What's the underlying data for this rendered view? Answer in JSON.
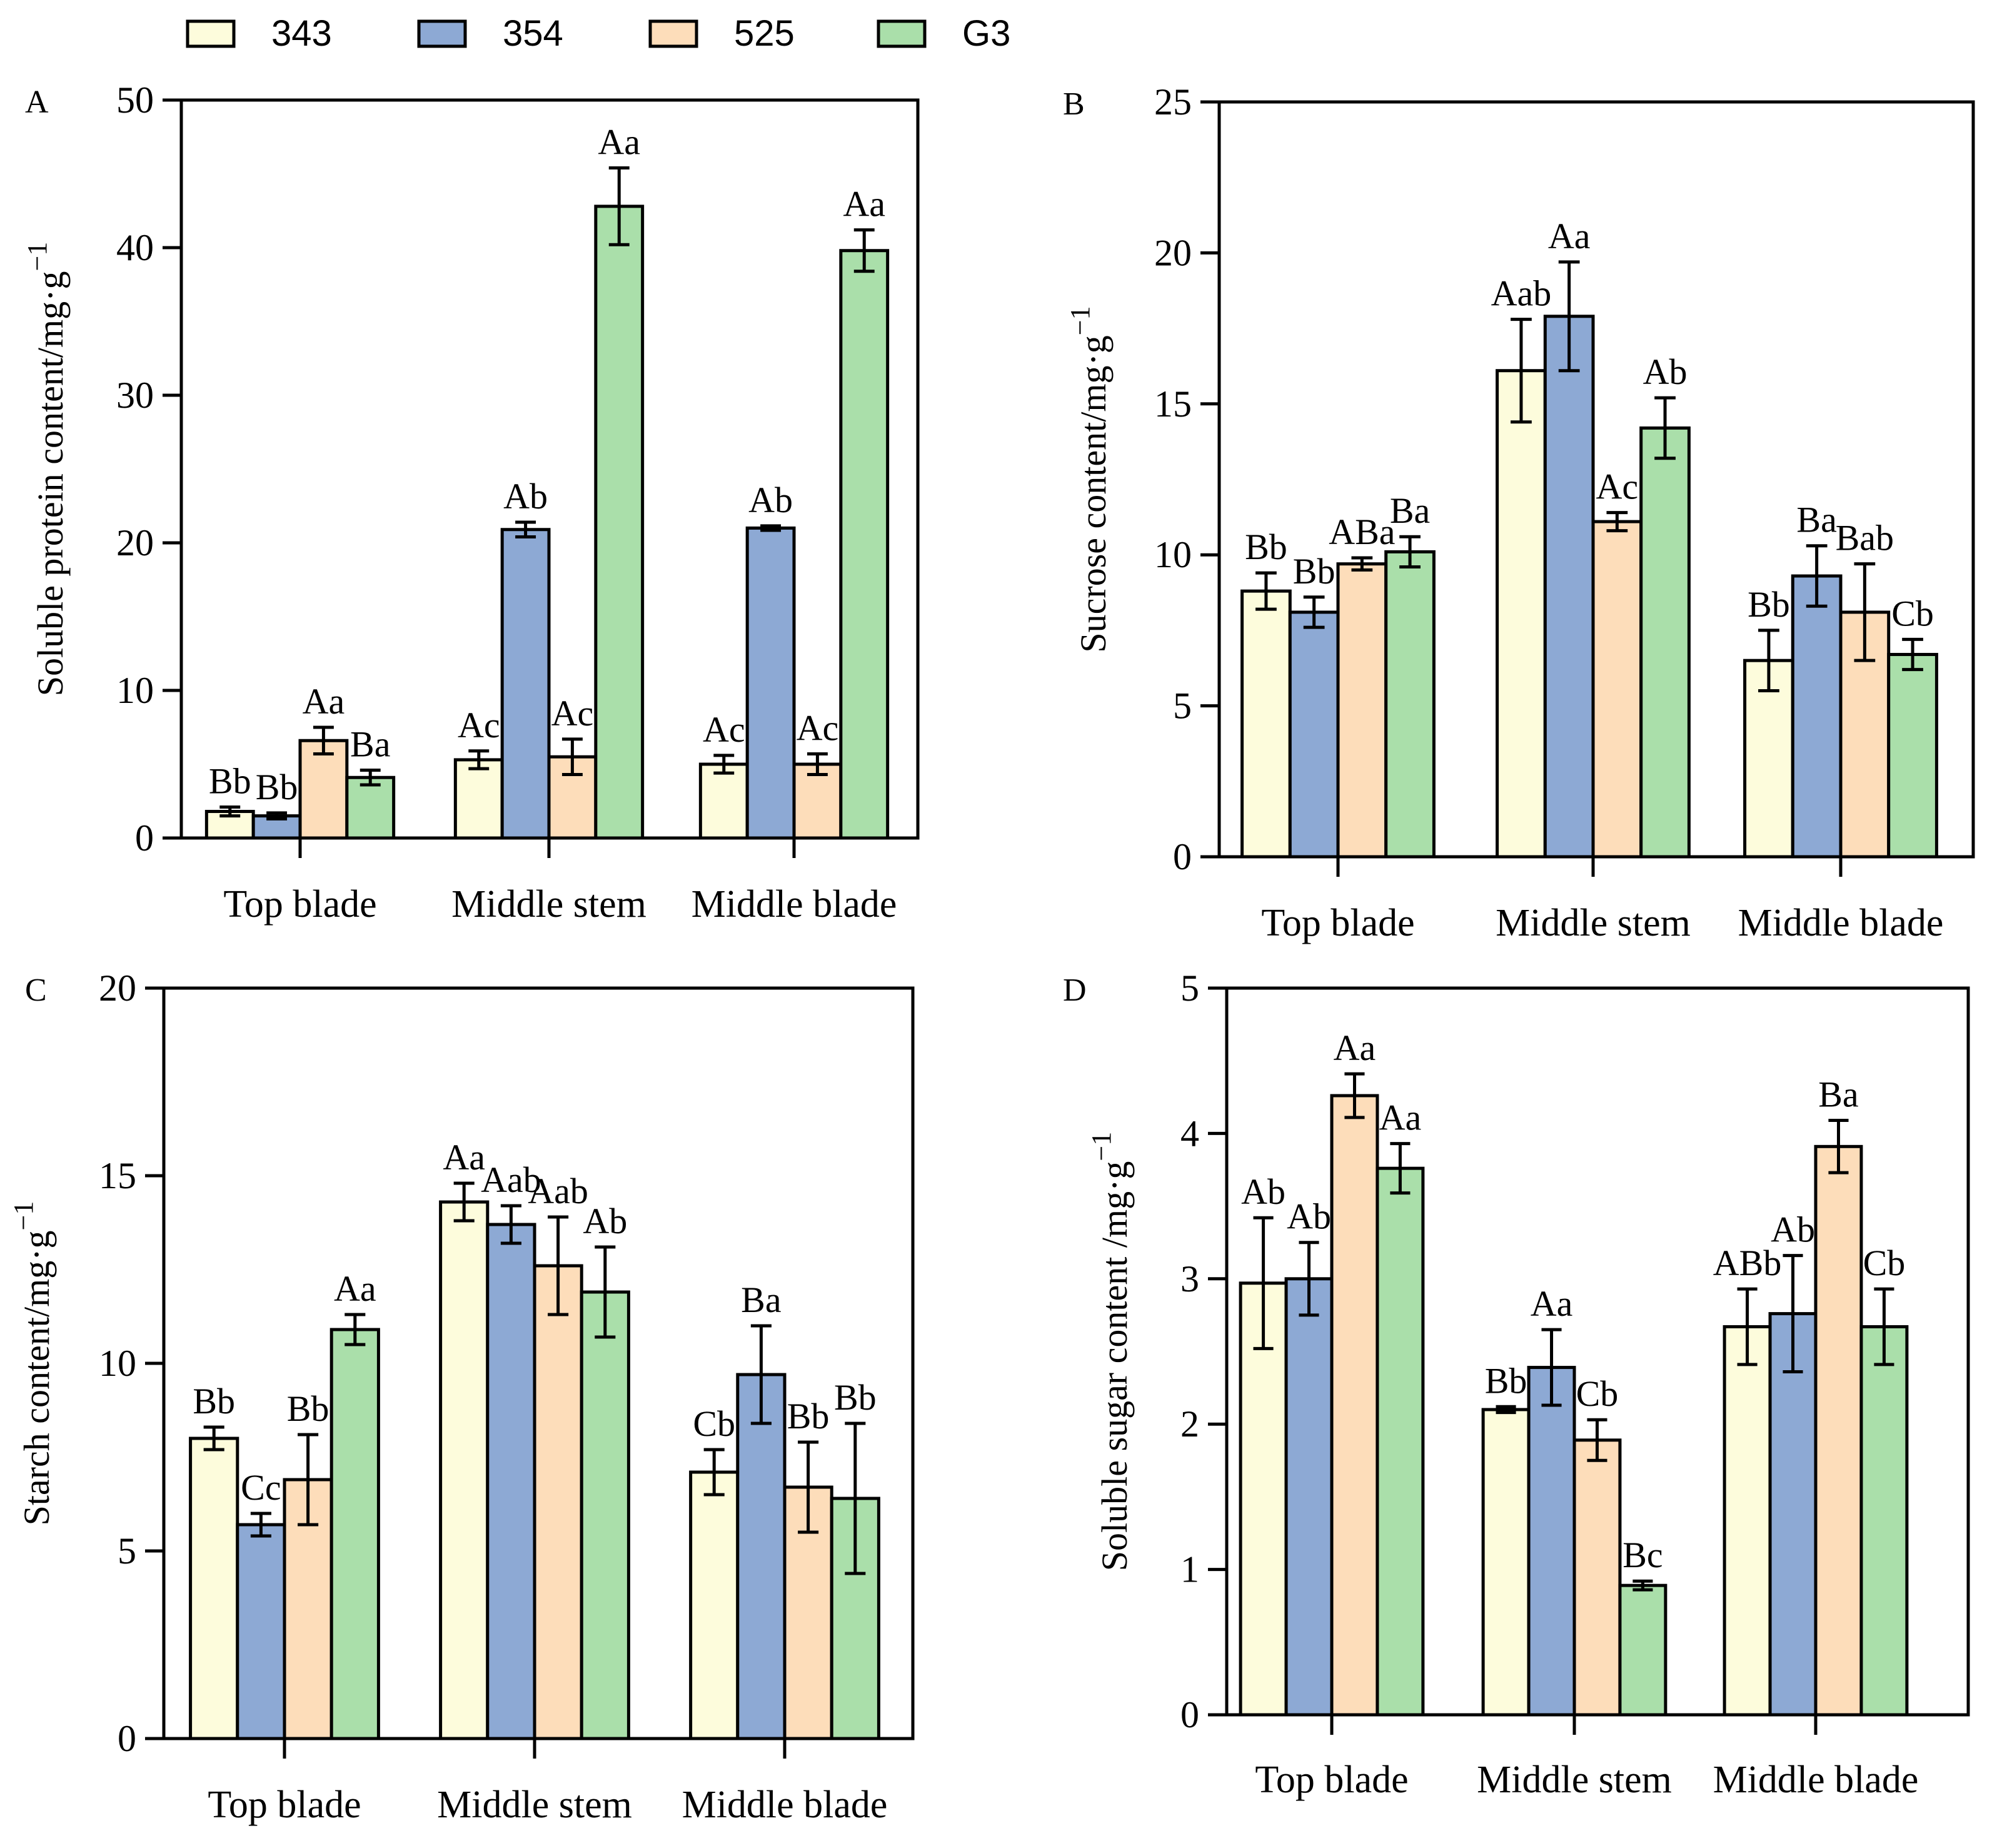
{
  "legend": [
    {
      "label": "343",
      "color": "#FDFCDC"
    },
    {
      "label": "354",
      "color": "#8DA9D4"
    },
    {
      "label": "525",
      "color": "#FDDDBA"
    },
    {
      "label": "G3",
      "color": "#AADFAA"
    }
  ],
  "chart_data": [
    {
      "panel": "A",
      "type": "bar",
      "ylabel": "Soluble protein content/mg·g",
      "ylabel_sup": "−1",
      "ylim": [
        0,
        50
      ],
      "yticks": [
        0,
        10,
        20,
        30,
        40,
        50
      ],
      "categories": [
        "Top blade",
        "Middle stem",
        "Middle blade"
      ],
      "series": [
        {
          "name": "343",
          "values": [
            1.8,
            5.3,
            5.0
          ],
          "errors": [
            0.3,
            0.6,
            0.6
          ],
          "letters": [
            "Bb",
            "Ac",
            "Ac"
          ]
        },
        {
          "name": "354",
          "values": [
            1.5,
            20.9,
            21.0
          ],
          "errors": [
            0.2,
            0.5,
            0.15
          ],
          "letters": [
            "Bb",
            "Ab",
            "Ab"
          ]
        },
        {
          "name": "525",
          "values": [
            6.6,
            5.5,
            5.0
          ],
          "errors": [
            0.9,
            1.2,
            0.7
          ],
          "letters": [
            "Aa",
            "Ac",
            "Ac"
          ]
        },
        {
          "name": "G3",
          "values": [
            4.1,
            42.8,
            39.8
          ],
          "errors": [
            0.5,
            2.6,
            1.4
          ],
          "letters": [
            "Ba",
            "Aa",
            "Aa"
          ]
        }
      ]
    },
    {
      "panel": "B",
      "type": "bar",
      "ylabel": "Sucrose content/mg·g",
      "ylabel_sup": "−1",
      "ylim": [
        0,
        25
      ],
      "yticks": [
        0,
        5,
        10,
        15,
        20,
        25
      ],
      "categories": [
        "Top blade",
        "Middle stem",
        "Middle blade"
      ],
      "series": [
        {
          "name": "343",
          "values": [
            8.8,
            16.1,
            6.5
          ],
          "errors": [
            0.6,
            1.7,
            1.0
          ],
          "letters": [
            "Bb",
            "Aab",
            "Bb"
          ]
        },
        {
          "name": "354",
          "values": [
            8.1,
            17.9,
            9.3
          ],
          "errors": [
            0.5,
            1.8,
            1.0
          ],
          "letters": [
            "Bb",
            "Aa",
            "Ba"
          ]
        },
        {
          "name": "525",
          "values": [
            9.7,
            11.1,
            8.1
          ],
          "errors": [
            0.2,
            0.3,
            1.6
          ],
          "letters": [
            "ABa",
            "Ac",
            "Bab"
          ]
        },
        {
          "name": "G3",
          "values": [
            10.1,
            14.2,
            6.7
          ],
          "errors": [
            0.5,
            1.0,
            0.5
          ],
          "letters": [
            "Ba",
            "Ab",
            "Cb"
          ]
        }
      ]
    },
    {
      "panel": "C",
      "type": "bar",
      "ylabel": "Starch content/mg·g",
      "ylabel_sup": "−1",
      "ylim": [
        0,
        20
      ],
      "yticks": [
        0,
        5,
        10,
        15,
        20
      ],
      "categories": [
        "Top blade",
        "Middle stem",
        "Middle blade"
      ],
      "series": [
        {
          "name": "343",
          "values": [
            8.0,
            14.3,
            7.1
          ],
          "errors": [
            0.3,
            0.5,
            0.6
          ],
          "letters": [
            "Bb",
            "Aa",
            "Cb"
          ]
        },
        {
          "name": "354",
          "values": [
            5.7,
            13.7,
            9.7
          ],
          "errors": [
            0.3,
            0.5,
            1.3
          ],
          "letters": [
            "Cc",
            "Aab",
            "Ba"
          ]
        },
        {
          "name": "525",
          "values": [
            6.9,
            12.6,
            6.7
          ],
          "errors": [
            1.2,
            1.3,
            1.2
          ],
          "letters": [
            "Bb",
            "Aab",
            "Bb"
          ]
        },
        {
          "name": "G3",
          "values": [
            10.9,
            11.9,
            6.4
          ],
          "errors": [
            0.4,
            1.2,
            2.0
          ],
          "letters": [
            "Aa",
            "Ab",
            "Bb"
          ]
        }
      ]
    },
    {
      "panel": "D",
      "type": "bar",
      "ylabel": "Soluble sugar content /mg·g",
      "ylabel_sup": "−1",
      "ylim": [
        0,
        5
      ],
      "yticks": [
        0,
        1,
        2,
        3,
        4,
        5
      ],
      "categories": [
        "Top blade",
        "Middle stem",
        "Middle blade"
      ],
      "series": [
        {
          "name": "343",
          "values": [
            2.97,
            2.1,
            2.67
          ],
          "errors": [
            0.45,
            0.02,
            0.26
          ],
          "letters": [
            "Ab",
            "Bb",
            "ABb"
          ]
        },
        {
          "name": "354",
          "values": [
            3.0,
            2.39,
            2.76
          ],
          "errors": [
            0.25,
            0.26,
            0.4
          ],
          "letters": [
            "Ab",
            "Aa",
            "Ab"
          ]
        },
        {
          "name": "525",
          "values": [
            4.26,
            1.89,
            3.91
          ],
          "errors": [
            0.15,
            0.14,
            0.18
          ],
          "letters": [
            "Aa",
            "Cb",
            "Ba"
          ]
        },
        {
          "name": "G3",
          "values": [
            3.76,
            0.89,
            2.67
          ],
          "errors": [
            0.17,
            0.03,
            0.26
          ],
          "letters": [
            "Aa",
            "Bc",
            "Cb"
          ]
        }
      ]
    }
  ]
}
